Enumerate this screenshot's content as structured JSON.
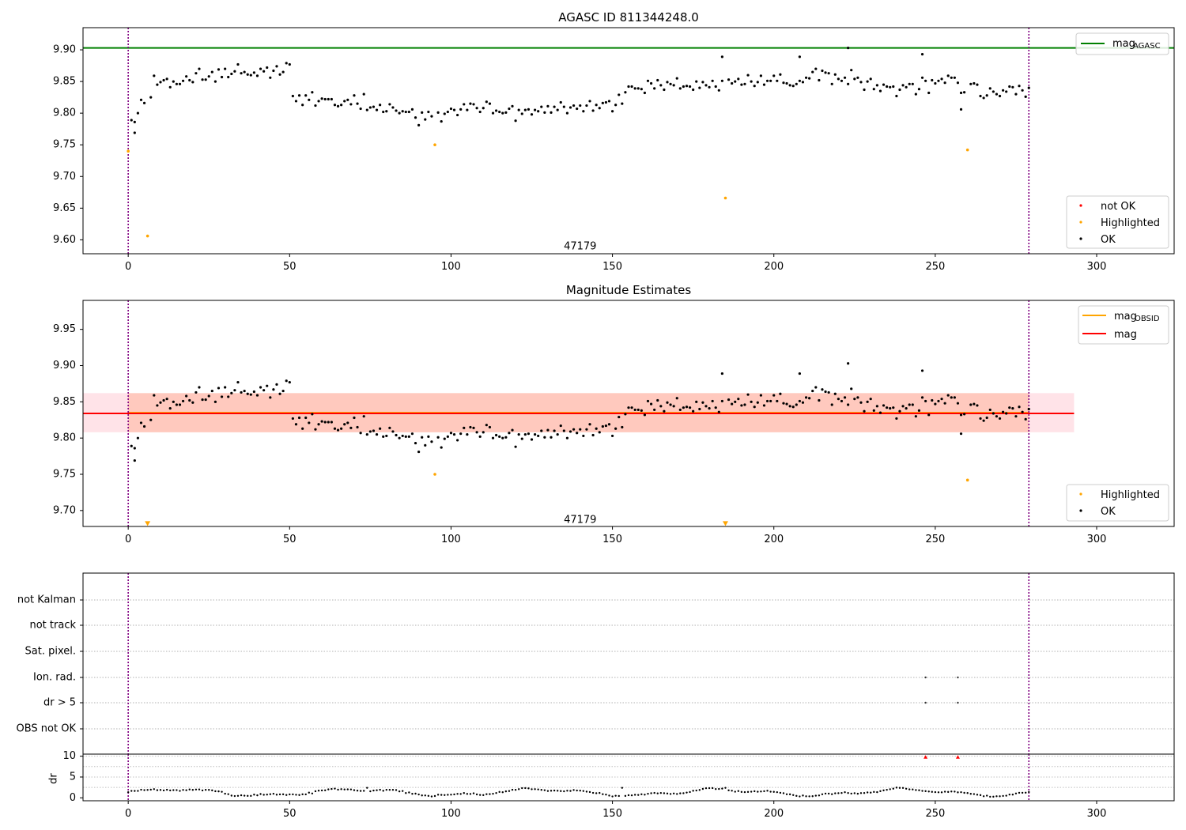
{
  "chart_data": [
    {
      "type": "scatter",
      "title": "AGASC ID 811344248.0",
      "xlim": [
        -14,
        324
      ],
      "ylim": [
        9.578,
        9.935
      ],
      "xticks": [
        0,
        50,
        100,
        150,
        200,
        250,
        300
      ],
      "yticks": [
        9.6,
        9.65,
        9.7,
        9.75,
        9.8,
        9.85,
        9.9
      ],
      "grid": false,
      "annotation": {
        "text": "47179",
        "x": 140,
        "y": 9.589
      },
      "hlines": [
        {
          "name": "mag_AGASC",
          "y": 9.903,
          "color": "#008000"
        }
      ],
      "vlines": [
        0,
        279
      ],
      "legend_upper": {
        "position": "upper right",
        "entries": [
          {
            "label": "mag",
            "sub": "AGASC",
            "color": "#008000",
            "kind": "line"
          }
        ]
      },
      "legend_lower": {
        "position": "lower right",
        "entries": [
          {
            "label": "not OK",
            "color": "#ff0000",
            "kind": "marker"
          },
          {
            "label": "Highlighted",
            "color": "#ffa500",
            "kind": "marker"
          },
          {
            "label": "OK",
            "color": "#000000",
            "kind": "marker"
          }
        ]
      },
      "series": [
        {
          "name": "Highlighted",
          "color": "#ffa500",
          "points": [
            [
              0,
              9.74
            ],
            [
              6,
              9.606
            ],
            [
              95,
              9.75
            ],
            [
              185,
              9.666
            ],
            [
              260,
              9.742
            ]
          ]
        },
        {
          "name": "not OK",
          "color": "#ff0000",
          "points": []
        }
      ]
    },
    {
      "type": "scatter",
      "title": "Magnitude Estimates",
      "xlim": [
        -14,
        324
      ],
      "ylim": [
        9.678,
        9.99
      ],
      "xticks": [
        0,
        50,
        100,
        150,
        200,
        250,
        300
      ],
      "yticks": [
        9.7,
        9.75,
        9.8,
        9.85,
        9.9,
        9.95
      ],
      "grid": false,
      "annotation": {
        "text": "47179",
        "x": 140,
        "y": 9.687
      },
      "hlines": [
        {
          "name": "mag_OBSID",
          "y": 9.835,
          "color": "#ffa500"
        },
        {
          "name": "mag",
          "y": 9.834,
          "color": "#ff0000"
        }
      ],
      "bands": [
        {
          "x": [
            -14,
            293
          ],
          "y": [
            9.808,
            9.862
          ],
          "color": "#ffc0cb",
          "opacity": 0.45
        },
        {
          "x": [
            0,
            279
          ],
          "y": [
            9.808,
            9.862
          ],
          "color": "#ffa07a",
          "opacity": 0.38
        }
      ],
      "vlines": [
        0,
        279
      ],
      "legend_upper": {
        "position": "upper right",
        "entries": [
          {
            "label": "mag",
            "sub": "OBSID",
            "color": "#ffa500",
            "kind": "line"
          },
          {
            "label": "mag",
            "sub": "",
            "color": "#ff0000",
            "kind": "line"
          }
        ]
      },
      "legend_lower": {
        "position": "lower right",
        "entries": [
          {
            "label": "Highlighted",
            "color": "#ffa500",
            "kind": "marker"
          },
          {
            "label": "OK",
            "color": "#000000",
            "kind": "marker"
          }
        ]
      },
      "series": [
        {
          "name": "Highlighted",
          "color": "#ffa500",
          "points": [
            [
              95,
              9.75
            ],
            [
              260,
              9.742
            ]
          ]
        },
        {
          "name": "Highlighted (below range)",
          "color": "#ffa500",
          "points": [
            [
              6,
              9.682
            ],
            [
              185,
              9.682
            ]
          ]
        }
      ]
    },
    {
      "type": "scatter",
      "title": "",
      "xlim": [
        -14,
        324
      ],
      "xticks": [
        0,
        50,
        100,
        150,
        200,
        250,
        300
      ],
      "flag_rows": [
        "not Kalman",
        "not track",
        "Sat. pixel.",
        "Ion. rad.",
        "dr > 5",
        "OBS not OK"
      ],
      "flags": [
        {
          "row": "Ion. rad.",
          "x": [
            247,
            257
          ]
        },
        {
          "row": "dr > 5",
          "x": [
            247,
            257
          ]
        }
      ],
      "dr_panel": {
        "ylabel": "dr",
        "ylim": [
          -0.7,
          10.5
        ],
        "yticks": [
          0,
          5,
          10
        ],
        "not_ok_points": [
          [
            247,
            9.8
          ],
          [
            257,
            9.8
          ]
        ]
      },
      "vlines": [
        0,
        279
      ]
    }
  ]
}
